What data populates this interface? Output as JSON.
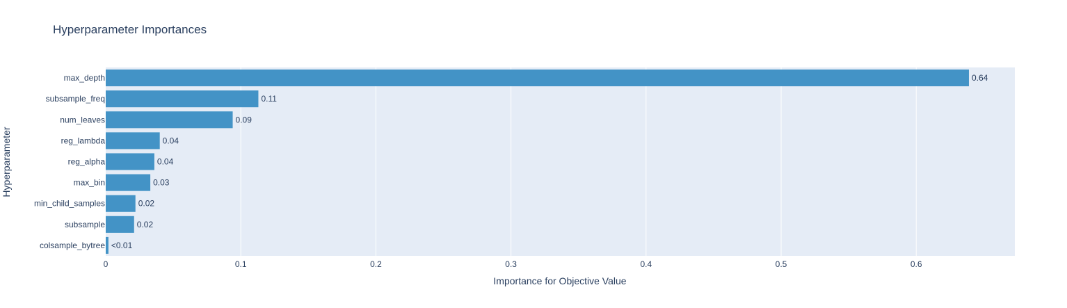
{
  "chart_data": {
    "type": "bar",
    "orientation": "horizontal",
    "title": "Hyperparameter Importances",
    "xlabel": "Importance for Objective Value",
    "ylabel": "Hyperparameter",
    "xlim": [
      0,
      0.673
    ],
    "xticks": [
      0,
      0.1,
      0.2,
      0.3,
      0.4,
      0.5,
      0.6
    ],
    "xtick_labels": [
      "0",
      "0.1",
      "0.2",
      "0.3",
      "0.4",
      "0.5",
      "0.6"
    ],
    "grid": true,
    "categories": [
      "max_depth",
      "subsample_freq",
      "num_leaves",
      "reg_lambda",
      "reg_alpha",
      "max_bin",
      "min_child_samples",
      "subsample",
      "colsample_bytree"
    ],
    "values": [
      0.639,
      0.113,
      0.094,
      0.04,
      0.036,
      0.033,
      0.022,
      0.021,
      0.002
    ],
    "value_labels": [
      "0.64",
      "0.11",
      "0.09",
      "0.04",
      "0.04",
      "0.03",
      "0.02",
      "0.02",
      "<0.01"
    ],
    "colors": {
      "bar": "#4393c6",
      "plot_bg": "#e5ecf6",
      "grid": "#ffffff",
      "text": "#2a3f5f"
    }
  }
}
